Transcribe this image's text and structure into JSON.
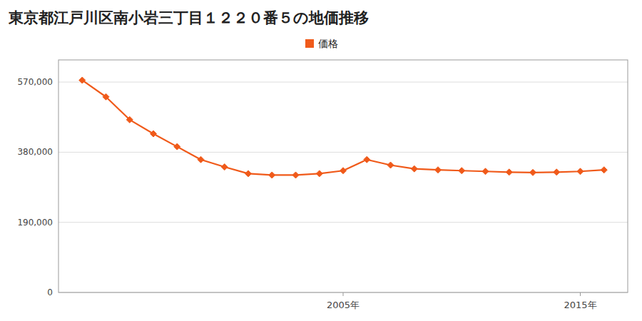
{
  "chart_data": {
    "type": "line",
    "title": "東京都江戸川区南小岩三丁目１２２０番５の地価推移",
    "x": [
      1994,
      1995,
      1996,
      1997,
      1998,
      1999,
      2000,
      2001,
      2002,
      2003,
      2004,
      2005,
      2006,
      2007,
      2008,
      2009,
      2010,
      2011,
      2012,
      2013,
      2014,
      2015,
      2016
    ],
    "series": [
      {
        "name": "価格",
        "color": "#f05a1a",
        "marker": "diamond",
        "values": [
          575000,
          530000,
          468000,
          430000,
          395000,
          360000,
          340000,
          322000,
          318000,
          318000,
          322000,
          330000,
          360000,
          345000,
          335000,
          332000,
          330000,
          328000,
          326000,
          325000,
          326000,
          328000,
          332000
        ]
      }
    ],
    "xlim": [
      1993,
      2017
    ],
    "xticks": [
      {
        "value": 2005,
        "label": "2005年"
      },
      {
        "value": 2015,
        "label": "2015年"
      }
    ],
    "ylim": [
      0,
      630000
    ],
    "yticks": [
      0,
      {
        "value": 190000,
        "label": "190,000"
      },
      {
        "value": 380000,
        "label": "380,000"
      },
      {
        "value": 570000,
        "label": "570,000"
      }
    ],
    "grid": true,
    "legend": "top"
  }
}
